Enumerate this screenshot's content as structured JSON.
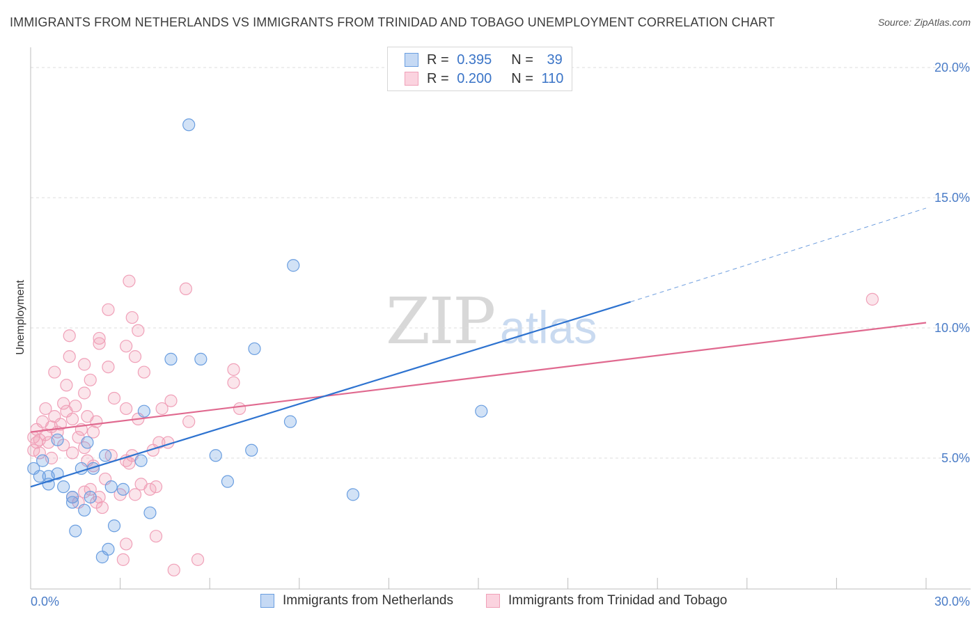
{
  "title": "IMMIGRANTS FROM NETHERLANDS VS IMMIGRANTS FROM TRINIDAD AND TOBAGO UNEMPLOYMENT CORRELATION CHART",
  "source": "Source: ZipAtlas.com",
  "watermark": {
    "part1": "ZIP",
    "part2": "atlas"
  },
  "legend": {
    "rows": [
      {
        "r_label": "R =",
        "r_value": "0.395",
        "n_label": "N =",
        "n_value": "39"
      },
      {
        "r_label": "R =",
        "r_value": "0.200",
        "n_label": "N =",
        "n_value": "110"
      }
    ]
  },
  "bottom_legend": {
    "series1": "Immigrants from Netherlands",
    "series2": "Immigrants from Trinidad and Tobago"
  },
  "chart_data": {
    "type": "scatter",
    "title": "IMMIGRANTS FROM NETHERLANDS VS IMMIGRANTS FROM TRINIDAD AND TOBAGO UNEMPLOYMENT CORRELATION CHART",
    "ylabel": "Unemployment",
    "xlim": [
      0,
      30
    ],
    "ylim": [
      0,
      20
    ],
    "x_tick_labels": [
      "0.0%",
      "30.0%"
    ],
    "y_tick_labels": [
      "5.0%",
      "10.0%",
      "15.0%",
      "20.0%"
    ],
    "y_ticks": [
      5,
      10,
      15,
      20
    ],
    "grid": true,
    "legend_position": "top-center",
    "colors": {
      "blue": "#6a9ee0",
      "blue_line": "#2e73d0",
      "pink": "#f0a0b8",
      "pink_line": "#e0698f"
    },
    "series": [
      {
        "name": "Immigrants from Netherlands",
        "color": "#6a9ee0",
        "trend": {
          "x0": 0,
          "y0": 3.9,
          "x1": 20.1,
          "y1": 11.0,
          "dashed_to_x": 30,
          "dashed_to_y": 14.6
        },
        "points": [
          [
            5.3,
            17.8
          ],
          [
            8.8,
            12.4
          ],
          [
            7.5,
            9.2
          ],
          [
            4.7,
            8.8
          ],
          [
            5.7,
            8.8
          ],
          [
            15.1,
            6.8
          ],
          [
            3.8,
            6.8
          ],
          [
            8.7,
            6.4
          ],
          [
            1.9,
            5.6
          ],
          [
            0.9,
            5.7
          ],
          [
            6.2,
            5.1
          ],
          [
            7.4,
            5.3
          ],
          [
            2.5,
            5.1
          ],
          [
            0.4,
            4.9
          ],
          [
            3.7,
            4.9
          ],
          [
            1.7,
            4.6
          ],
          [
            2.1,
            4.6
          ],
          [
            0.1,
            4.6
          ],
          [
            0.3,
            4.3
          ],
          [
            0.6,
            4.3
          ],
          [
            0.9,
            4.4
          ],
          [
            6.6,
            4.1
          ],
          [
            0.6,
            4.0
          ],
          [
            1.1,
            3.9
          ],
          [
            2.7,
            3.9
          ],
          [
            3.1,
            3.8
          ],
          [
            10.8,
            3.6
          ],
          [
            1.4,
            3.5
          ],
          [
            2.0,
            3.5
          ],
          [
            1.4,
            3.3
          ],
          [
            1.8,
            3.0
          ],
          [
            4.0,
            2.9
          ],
          [
            2.8,
            2.4
          ],
          [
            1.5,
            2.2
          ],
          [
            2.6,
            1.5
          ],
          [
            2.4,
            1.2
          ]
        ]
      },
      {
        "name": "Immigrants from Trinidad and Tobago",
        "color": "#f0a0b8",
        "trend": {
          "x0": 0,
          "y0": 6.0,
          "x1": 30,
          "y1": 10.2
        },
        "points": [
          [
            28.2,
            11.1
          ],
          [
            3.3,
            11.8
          ],
          [
            5.2,
            11.5
          ],
          [
            2.6,
            10.7
          ],
          [
            3.4,
            10.4
          ],
          [
            3.6,
            9.9
          ],
          [
            1.3,
            9.7
          ],
          [
            2.3,
            9.6
          ],
          [
            2.3,
            9.4
          ],
          [
            3.2,
            9.3
          ],
          [
            1.3,
            8.9
          ],
          [
            3.5,
            8.9
          ],
          [
            1.8,
            8.6
          ],
          [
            2.6,
            8.5
          ],
          [
            6.8,
            8.4
          ],
          [
            0.8,
            8.3
          ],
          [
            3.8,
            8.3
          ],
          [
            2.0,
            8.0
          ],
          [
            6.8,
            7.9
          ],
          [
            1.2,
            7.8
          ],
          [
            1.8,
            7.5
          ],
          [
            2.8,
            7.3
          ],
          [
            4.7,
            7.2
          ],
          [
            1.1,
            7.1
          ],
          [
            1.5,
            7.0
          ],
          [
            0.5,
            6.9
          ],
          [
            3.2,
            6.9
          ],
          [
            4.4,
            6.9
          ],
          [
            7.0,
            6.9
          ],
          [
            1.2,
            6.8
          ],
          [
            1.9,
            6.6
          ],
          [
            0.8,
            6.6
          ],
          [
            1.4,
            6.5
          ],
          [
            3.6,
            6.5
          ],
          [
            0.4,
            6.4
          ],
          [
            1.0,
            6.3
          ],
          [
            0.7,
            6.2
          ],
          [
            2.2,
            6.4
          ],
          [
            5.3,
            6.4
          ],
          [
            0.2,
            6.1
          ],
          [
            0.9,
            6.0
          ],
          [
            1.7,
            6.1
          ],
          [
            2.1,
            6.0
          ],
          [
            0.5,
            5.9
          ],
          [
            1.6,
            5.8
          ],
          [
            0.3,
            5.7
          ],
          [
            0.2,
            5.6
          ],
          [
            0.1,
            5.8
          ],
          [
            0.6,
            5.6
          ],
          [
            1.1,
            5.5
          ],
          [
            1.8,
            5.4
          ],
          [
            0.1,
            5.3
          ],
          [
            0.3,
            5.2
          ],
          [
            4.3,
            5.6
          ],
          [
            4.6,
            5.6
          ],
          [
            1.4,
            5.2
          ],
          [
            2.7,
            5.1
          ],
          [
            3.4,
            5.1
          ],
          [
            4.1,
            5.3
          ],
          [
            0.7,
            5.0
          ],
          [
            2.1,
            4.7
          ],
          [
            1.9,
            4.9
          ],
          [
            3.2,
            4.9
          ],
          [
            3.3,
            4.8
          ],
          [
            4.2,
            3.9
          ],
          [
            2.5,
            4.2
          ],
          [
            3.7,
            4.0
          ],
          [
            2.0,
            3.8
          ],
          [
            1.8,
            3.7
          ],
          [
            4.0,
            3.8
          ],
          [
            1.4,
            3.5
          ],
          [
            2.3,
            3.5
          ],
          [
            3.0,
            3.6
          ],
          [
            3.5,
            3.6
          ],
          [
            2.2,
            3.3
          ],
          [
            1.6,
            3.3
          ],
          [
            2.4,
            3.1
          ],
          [
            3.2,
            1.7
          ],
          [
            4.2,
            2.0
          ],
          [
            3.1,
            1.1
          ],
          [
            5.6,
            1.1
          ],
          [
            4.8,
            0.7
          ]
        ]
      }
    ]
  }
}
